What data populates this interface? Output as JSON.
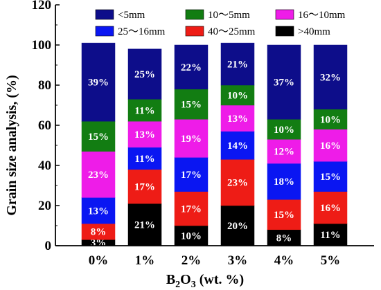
{
  "chart_data": {
    "type": "bar",
    "stacked": true,
    "categories": [
      "0%",
      "1%",
      "2%",
      "3%",
      "4%",
      "5%"
    ],
    "xlabel": {
      "base": "B",
      "sub1": "2",
      "mid": "O",
      "sub2": "3",
      "tail": " (wt. %)"
    },
    "ylabel": "Grain size analysis, (%)",
    "ylim": [
      0,
      120
    ],
    "yticks": [
      "0",
      "20",
      "40",
      "60",
      "80",
      "100",
      "120"
    ],
    "yticks_values": [
      0,
      20,
      40,
      60,
      80,
      100,
      120
    ],
    "legend_position": "top",
    "series": [
      {
        "name": ">40mm",
        "color": "#000000",
        "label_color": "#ffffff",
        "values": [
          3,
          21,
          10,
          20,
          8,
          11
        ],
        "labels": [
          "3%",
          "21%",
          "10%",
          "20%",
          "8%",
          "11%"
        ]
      },
      {
        "name": "40～25mm",
        "color": "#ee1c16",
        "label_color": "#ffffff",
        "values": [
          8,
          17,
          17,
          23,
          15,
          16
        ],
        "labels": [
          "8%",
          "17%",
          "17%",
          "23%",
          "15%",
          "16%"
        ]
      },
      {
        "name": "25～16mm",
        "color": "#0a16f2",
        "label_color": "#ffffff",
        "values": [
          13,
          11,
          17,
          14,
          18,
          15
        ],
        "labels": [
          "13%",
          "11%",
          "17%",
          "14%",
          "18%",
          "15%"
        ]
      },
      {
        "name": "16～10mm",
        "color": "#ee1ce8",
        "label_color": "#ffffff",
        "values": [
          23,
          13,
          19,
          13,
          12,
          16
        ],
        "labels": [
          "23%",
          "13%",
          "19%",
          "13%",
          "12%",
          "16%"
        ]
      },
      {
        "name": "10～5mm",
        "color": "#127d12",
        "label_color": "#ffffff",
        "values": [
          15,
          11,
          15,
          10,
          10,
          10
        ],
        "labels": [
          "15%",
          "11%",
          "15%",
          "10%",
          "10%",
          "10%"
        ]
      },
      {
        "name": "<5mm",
        "color": "#0d0d8a",
        "label_color": "#ffffff",
        "values": [
          39,
          25,
          22,
          21,
          37,
          32
        ],
        "labels": [
          "39%",
          "25%",
          "22%",
          "21%",
          "37%",
          "32%"
        ]
      }
    ]
  }
}
